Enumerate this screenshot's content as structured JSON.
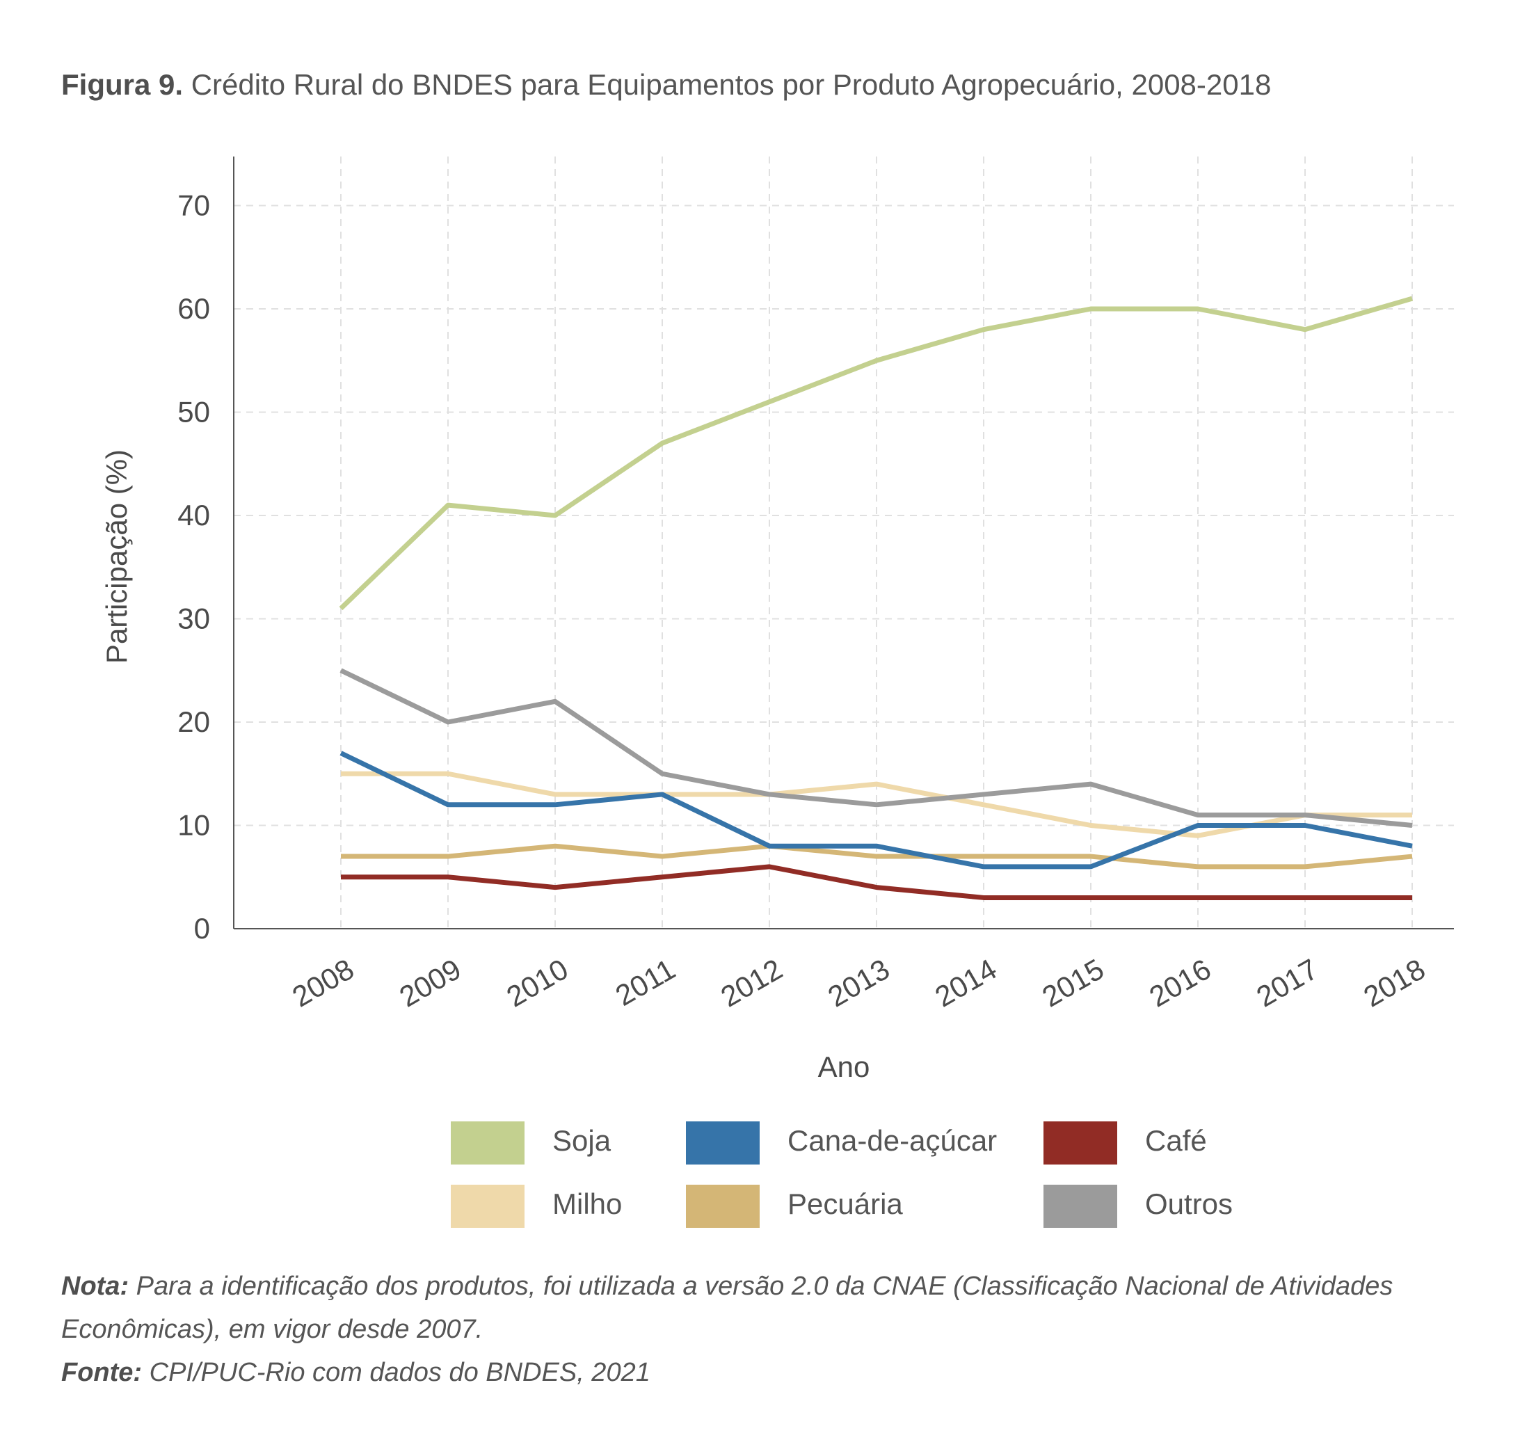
{
  "figure": {
    "label": "Figura 9.",
    "title": "Crédito Rural do BNDES para Equipamentos por Produto Agropecuário, 2008-2018"
  },
  "chart_data": {
    "type": "line",
    "xlabel": "Ano",
    "ylabel": "Participação (%)",
    "ylim": [
      0,
      70
    ],
    "yticks": [
      0,
      10,
      20,
      30,
      40,
      50,
      60,
      70
    ],
    "grid": true,
    "legend_position": "bottom",
    "categories": [
      "2008",
      "2009",
      "2010",
      "2011",
      "2012",
      "2013",
      "2014",
      "2015",
      "2016",
      "2017",
      "2018"
    ],
    "series": [
      {
        "name": "Soja",
        "color": "#c3d08f",
        "values": [
          31,
          41,
          40,
          47,
          51,
          55,
          58,
          60,
          60,
          58,
          61
        ]
      },
      {
        "name": "Milho",
        "color": "#efd9aa",
        "values": [
          15,
          15,
          13,
          13,
          13,
          14,
          12,
          10,
          9,
          11,
          11
        ]
      },
      {
        "name": "Cana-de-açúcar",
        "color": "#3674a9",
        "values": [
          17,
          12,
          12,
          13,
          8,
          8,
          6,
          6,
          10,
          10,
          8
        ]
      },
      {
        "name": "Pecuária",
        "color": "#d4b676",
        "values": [
          7,
          7,
          8,
          7,
          8,
          7,
          7,
          7,
          6,
          6,
          7
        ]
      },
      {
        "name": "Café",
        "color": "#912c25",
        "values": [
          5,
          5,
          4,
          5,
          6,
          4,
          3,
          3,
          3,
          3,
          3
        ]
      },
      {
        "name": "Outros",
        "color": "#9b9b9b",
        "values": [
          25,
          20,
          22,
          15,
          13,
          12,
          13,
          14,
          11,
          11,
          10
        ]
      }
    ]
  },
  "legend": [
    {
      "name": "Soja",
      "color": "#c3d08f"
    },
    {
      "name": "Cana-de-açúcar",
      "color": "#3674a9"
    },
    {
      "name": "Café",
      "color": "#912c25"
    },
    {
      "name": "Milho",
      "color": "#efd9aa"
    },
    {
      "name": "Pecuária",
      "color": "#d4b676"
    },
    {
      "name": "Outros",
      "color": "#9b9b9b"
    }
  ],
  "notes": {
    "nota_label": "Nota:",
    "nota_text": "Para a identificação dos produtos, foi utilizada a versão 2.0 da CNAE (Classificação Nacional de Atividades Econômicas), em vigor desde 2007.",
    "fonte_label": "Fonte:",
    "fonte_text": "CPI/PUC-Rio com dados do BNDES, 2021"
  }
}
